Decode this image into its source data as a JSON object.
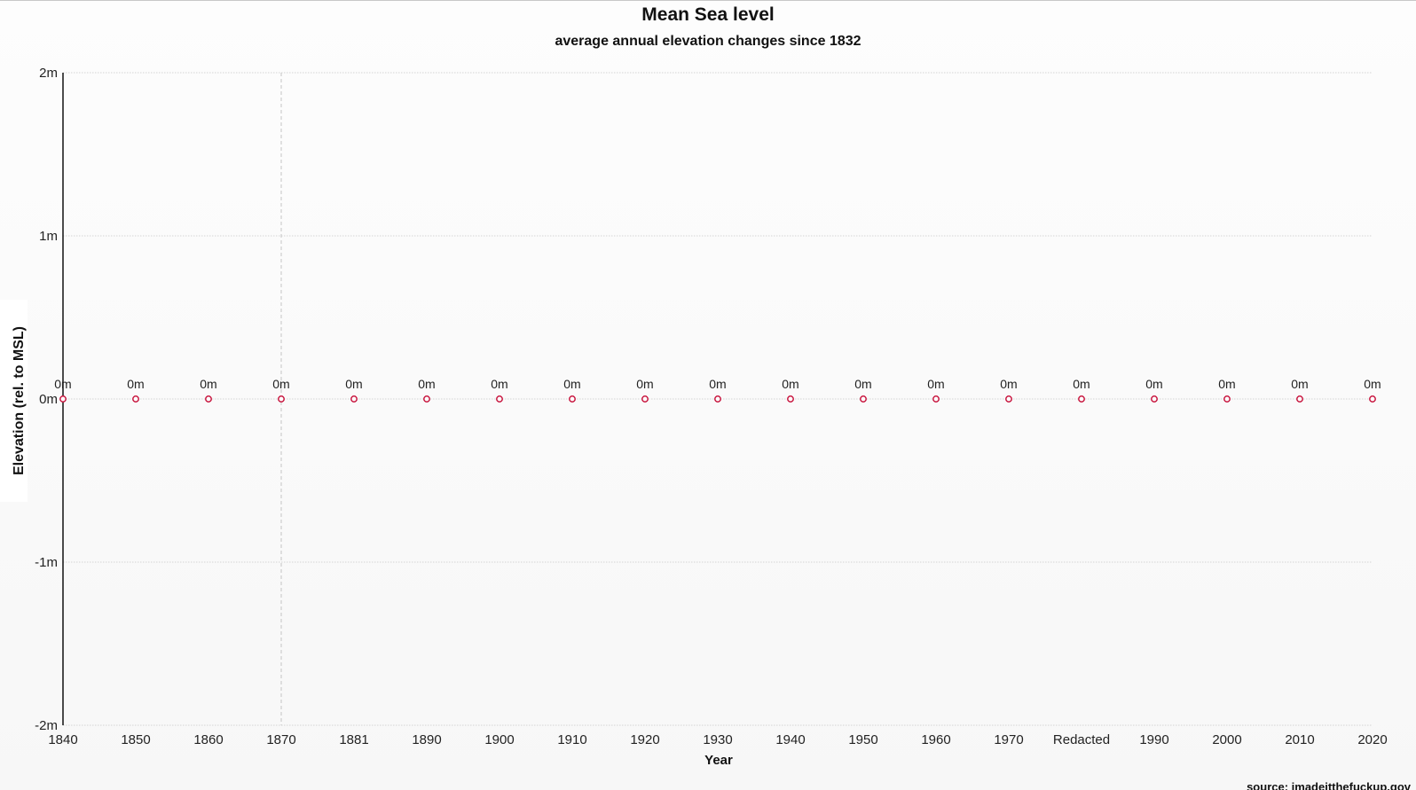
{
  "title": "Mean Sea level",
  "subtitle": "average annual elevation changes since 1832",
  "source": "source: imadeitthefuckup.gov",
  "colors": {
    "line": "#c8163f",
    "point_fill": "#ffffff",
    "grid": "#d4d4d4"
  },
  "chart_data": {
    "type": "line",
    "title": "Mean Sea level",
    "subtitle": "average annual elevation changes since 1832",
    "xlabel": "Year",
    "ylabel": "Elevation (rel. to MSL)",
    "categories": [
      "1840",
      "1850",
      "1860",
      "1870",
      "1881",
      "1890",
      "1900",
      "1910",
      "1920",
      "1930",
      "1940",
      "1950",
      "1960",
      "1970",
      "Redacted",
      "1990",
      "2000",
      "2010",
      "2020"
    ],
    "series": [
      {
        "values": [
          0,
          0,
          0,
          0,
          0,
          0,
          0,
          0,
          0,
          0,
          0,
          0,
          0,
          0,
          0,
          0,
          0,
          0,
          0
        ],
        "labels": [
          "0m",
          "0m",
          "0m",
          "0m",
          "0m",
          "0m",
          "0m",
          "0m",
          "0m",
          "0m",
          "0m",
          "0m",
          "0m",
          "0m",
          "0m",
          "0m",
          "0m",
          "0m",
          "0m"
        ]
      }
    ],
    "y_ticks": [
      2,
      1,
      0,
      -1,
      -2
    ],
    "y_tick_labels": [
      "2m",
      "1m",
      "0m",
      "-1m",
      "-2m"
    ],
    "ylim": [
      -2,
      2
    ],
    "grid": true,
    "highlighted_category": "1870"
  }
}
